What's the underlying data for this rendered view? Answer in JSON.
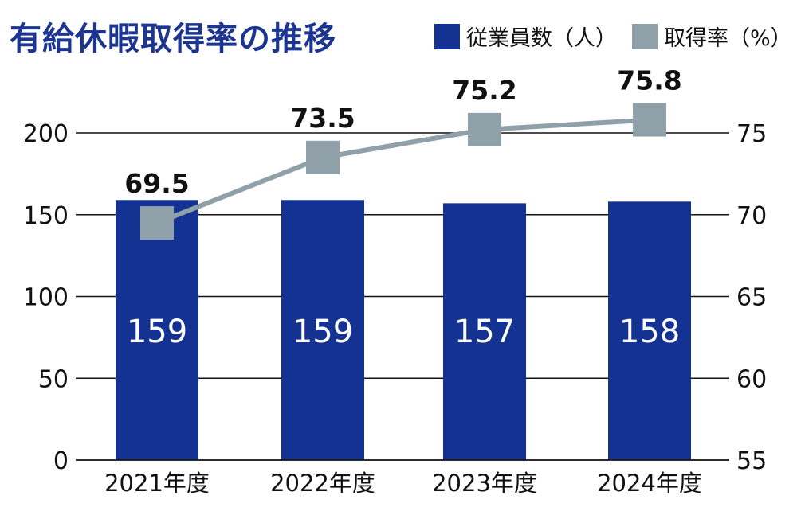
{
  "chart_data": {
    "type": "bar+line",
    "title": "有給休暇取得率の推移",
    "categories": [
      "2021年度",
      "2022年度",
      "2023年度",
      "2024年度"
    ],
    "series": [
      {
        "name": "従業員数（人）",
        "type": "bar",
        "axis": "left",
        "color": "#143291",
        "values": [
          159,
          159,
          157,
          158
        ]
      },
      {
        "name": "取得率（%）",
        "type": "line",
        "axis": "right",
        "color": "#8fa0a8",
        "values": [
          69.5,
          73.5,
          75.2,
          75.8
        ]
      }
    ],
    "y_left": {
      "ylim": [
        0,
        200
      ],
      "ticks": [
        0,
        50,
        100,
        150,
        200
      ]
    },
    "y_right": {
      "ylim": [
        55,
        75
      ],
      "ticks": [
        55,
        60,
        65,
        70,
        75
      ]
    },
    "grid": "horizontal",
    "legend": "top-right"
  }
}
